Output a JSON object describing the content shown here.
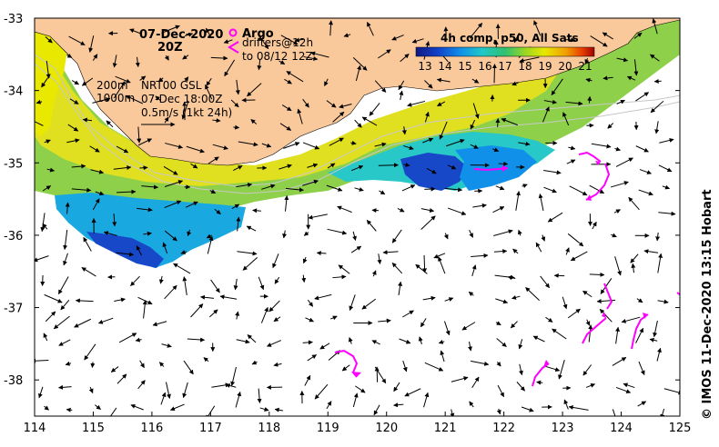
{
  "map": {
    "date_line1": "07-Dec-2020",
    "date_line2": "20Z",
    "legend_argo_label": "Argo",
    "legend_drifters_line1": "drifters@12h",
    "legend_drifters_line2": "to 08/12 12Z",
    "legend_argo_symbol": "magenta-circle",
    "legend_drifter_symbol": "magenta-arrowhead",
    "contour_200": "200m",
    "contour_1000": "1000m",
    "current_product": "NRT00 GSL",
    "current_time": "07-Dec 18:00Z",
    "scale_label": "0.5m/s (1kt 24h)",
    "credit": "© IMOS 11-Dec-2020 13:15 Hobart",
    "colors": {
      "land": "#f9c89b",
      "drifter": "#ff00ff",
      "contour": "#c8c8c8",
      "arrow": "#000000"
    }
  },
  "colorbar": {
    "title": "4h comp, p50, All Sats",
    "ticks": [
      "13",
      "14",
      "15",
      "16",
      "17",
      "18",
      "19",
      "20",
      "21"
    ],
    "colors": [
      "#101880",
      "#1040c8",
      "#1090e8",
      "#20c8c8",
      "#30c070",
      "#a0d820",
      "#e8e800",
      "#f0a000",
      "#e84000",
      "#a00000"
    ]
  },
  "axes": {
    "x_ticks": [
      "114",
      "115",
      "116",
      "117",
      "118",
      "119",
      "120",
      "121",
      "122",
      "123",
      "124",
      "125"
    ],
    "y_ticks": [
      "-33",
      "-34",
      "-35",
      "-36",
      "-37",
      "-38"
    ],
    "x_range": [
      114,
      125
    ],
    "y_range": [
      -38.5,
      -33
    ]
  }
}
